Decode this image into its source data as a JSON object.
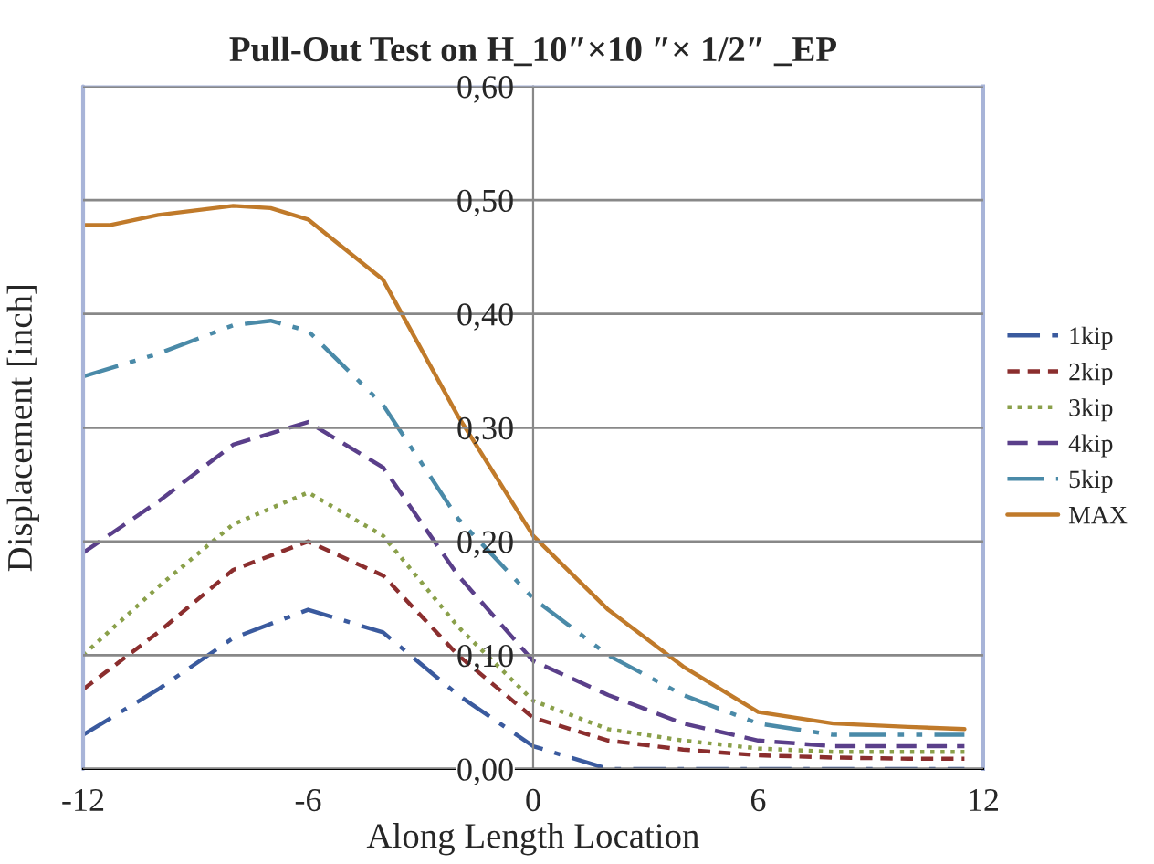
{
  "chart_data": {
    "type": "line",
    "title": "Pull-Out Test on H_10″×10 ″× 1/2″ _EP",
    "xlabel": "Along Length Location",
    "ylabel": "Displacement [inch]",
    "xlim": [
      -12,
      12
    ],
    "xticks": [
      -12,
      -6,
      0,
      6,
      12
    ],
    "ylim": [
      0,
      0.6
    ],
    "yticks": [
      {
        "value": 0,
        "label": "0,00"
      },
      {
        "value": 0.1,
        "label": "0,10"
      },
      {
        "value": 0.2,
        "label": "0,20"
      },
      {
        "value": 0.3,
        "label": "0,30"
      },
      {
        "value": 0.4,
        "label": "0,40"
      },
      {
        "value": 0.5,
        "label": "0,50"
      },
      {
        "value": 0.6,
        "label": "0,60"
      }
    ],
    "grid": "y",
    "legend": "right",
    "marker": "none",
    "series": [
      {
        "name": "1kip",
        "color": "#3a5a9e",
        "line_style": "dashdot",
        "x": [
          -12,
          -10,
          -8,
          -6,
          -4,
          -2,
          0,
          2,
          4,
          6,
          8,
          10,
          11.5
        ],
        "values": [
          0.03,
          0.07,
          0.115,
          0.14,
          0.12,
          0.065,
          0.02,
          0.0,
          0.0,
          0.0,
          0.0,
          0.0,
          0.0
        ]
      },
      {
        "name": "2kip",
        "color": "#8b2e2e",
        "line_style": "dashed",
        "x": [
          -12,
          -10,
          -8,
          -6,
          -4,
          -2,
          0,
          2,
          4,
          6,
          8,
          10,
          11.5
        ],
        "values": [
          0.07,
          0.12,
          0.175,
          0.2,
          0.17,
          0.1,
          0.045,
          0.025,
          0.017,
          0.012,
          0.01,
          0.009,
          0.009
        ]
      },
      {
        "name": "3kip",
        "color": "#8aa04a",
        "line_style": "dotted",
        "x": [
          -12,
          -10,
          -8,
          -6,
          -4,
          -2,
          0,
          2,
          4,
          6,
          8,
          10,
          11.5
        ],
        "values": [
          0.1,
          0.16,
          0.215,
          0.243,
          0.205,
          0.125,
          0.06,
          0.035,
          0.025,
          0.018,
          0.015,
          0.015,
          0.015
        ]
      },
      {
        "name": "4kip",
        "color": "#5a3f8a",
        "line_style": "longdash",
        "x": [
          -12,
          -10,
          -8,
          -6,
          -4,
          -2,
          0,
          2,
          4,
          6,
          8,
          10,
          11.5
        ],
        "values": [
          0.19,
          0.235,
          0.285,
          0.305,
          0.265,
          0.17,
          0.095,
          0.065,
          0.04,
          0.025,
          0.02,
          0.02,
          0.02
        ]
      },
      {
        "name": "5kip",
        "color": "#4a8aa8",
        "line_style": "dashdotdot",
        "x": [
          -12,
          -10,
          -8,
          -7,
          -6,
          -4,
          -2,
          0,
          2,
          4,
          6,
          8,
          10,
          11.5
        ],
        "values": [
          0.345,
          0.365,
          0.39,
          0.394,
          0.385,
          0.32,
          0.22,
          0.15,
          0.1,
          0.065,
          0.04,
          0.03,
          0.03,
          0.03
        ]
      },
      {
        "name": "MAX",
        "color": "#c07a2a",
        "line_style": "solid",
        "x": [
          -12,
          -11.3,
          -10,
          -8,
          -7,
          -6,
          -4,
          -2,
          0,
          2,
          4,
          6,
          8,
          10,
          11.5
        ],
        "values": [
          0.478,
          0.478,
          0.487,
          0.495,
          0.493,
          0.483,
          0.43,
          0.31,
          0.205,
          0.14,
          0.09,
          0.05,
          0.04,
          0.037,
          0.035
        ]
      }
    ]
  }
}
